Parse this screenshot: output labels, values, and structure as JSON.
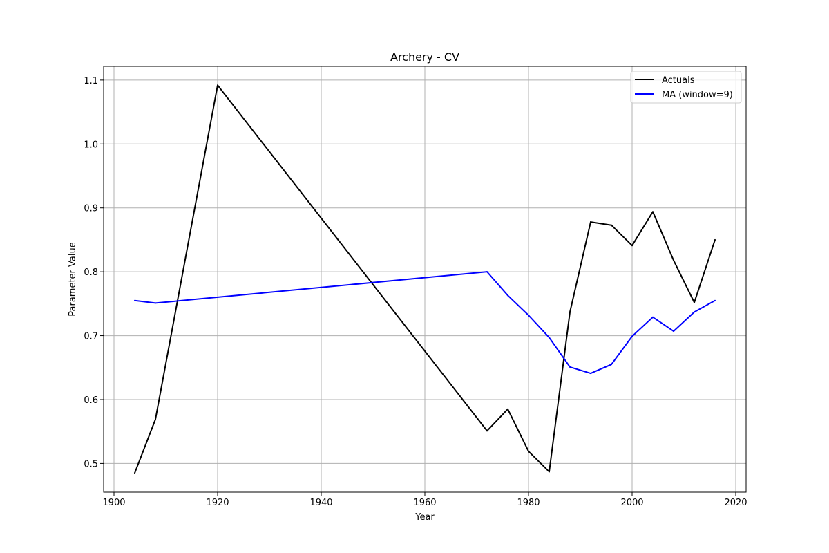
{
  "chart_data": {
    "type": "line",
    "title": "Archery - CV",
    "xlabel": "Year",
    "ylabel": "Parameter Value",
    "xlim": [
      1898,
      2022
    ],
    "ylim": [
      0.455,
      1.1215
    ],
    "xticks": [
      1900,
      1920,
      1940,
      1960,
      1980,
      2000,
      2020
    ],
    "yticks": [
      0.5,
      0.6,
      0.7,
      0.8,
      0.9,
      1.0,
      1.1
    ],
    "grid": true,
    "legend_position": "top-right",
    "series": [
      {
        "name": "Actuals",
        "color": "#000000",
        "x": [
          1904,
          1908,
          1920,
          1972,
          1976,
          1980,
          1984,
          1988,
          1992,
          1996,
          2000,
          2004,
          2008,
          2012,
          2016
        ],
        "y": [
          0.485,
          0.569,
          1.092,
          0.551,
          0.585,
          0.519,
          0.487,
          0.737,
          0.878,
          0.873,
          0.841,
          0.894,
          0.818,
          0.752,
          0.85
        ]
      },
      {
        "name": "MA (window=9)",
        "color": "#0000ff",
        "x": [
          1904,
          1908,
          1972,
          1976,
          1980,
          1984,
          1988,
          1992,
          1996,
          2000,
          2004,
          2008,
          2012,
          2016
        ],
        "y": [
          0.755,
          0.751,
          0.8,
          0.763,
          0.732,
          0.697,
          0.651,
          0.641,
          0.655,
          0.699,
          0.729,
          0.707,
          0.737,
          0.755
        ]
      }
    ]
  }
}
